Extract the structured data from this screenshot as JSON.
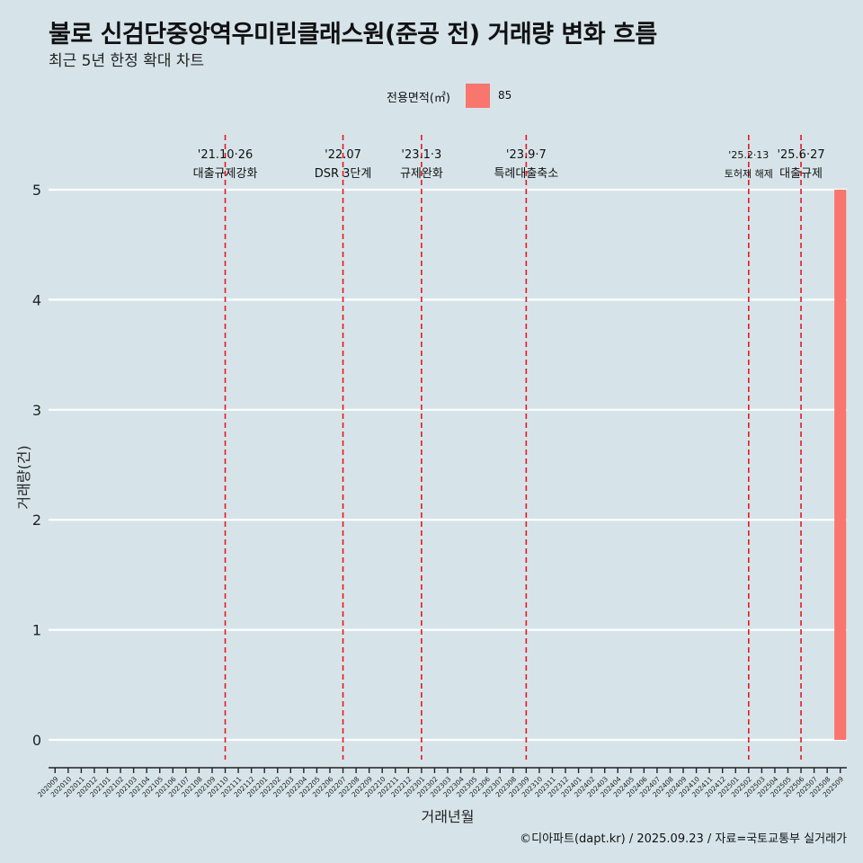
{
  "title": "불로 신검단중앙역우미린클래스원(준공 전) 거래량 변화 흐름",
  "subtitle": "최근 5년 한정 확대 차트",
  "legend": {
    "title": "전용면적(㎡)",
    "label": "85",
    "color": "#f8766d"
  },
  "caption": "©디아파트(dapt.kr) / 2025.09.23 / 자료=국토교통부 실거래가",
  "chart_data": {
    "type": "bar",
    "xlabel": "거래년월",
    "ylabel": "거래량(건)",
    "ylim": [
      0,
      5
    ],
    "yticks": [
      0,
      1,
      2,
      3,
      4,
      5
    ],
    "categories": [
      "202009",
      "202010",
      "202011",
      "202012",
      "202101",
      "202102",
      "202103",
      "202104",
      "202105",
      "202106",
      "202107",
      "202108",
      "202109",
      "202110",
      "202111",
      "202112",
      "202201",
      "202202",
      "202203",
      "202204",
      "202205",
      "202206",
      "202207",
      "202208",
      "202209",
      "202210",
      "202211",
      "202212",
      "202301",
      "202302",
      "202303",
      "202304",
      "202305",
      "202306",
      "202307",
      "202308",
      "202309",
      "202310",
      "202311",
      "202312",
      "202401",
      "202402",
      "202403",
      "202404",
      "202405",
      "202406",
      "202407",
      "202408",
      "202409",
      "202410",
      "202411",
      "202412",
      "202501",
      "202502",
      "202503",
      "202504",
      "202505",
      "202506",
      "202507",
      "202508",
      "202509"
    ],
    "series": [
      {
        "name": "85",
        "color": "#f8766d",
        "values": [
          0,
          0,
          0,
          0,
          0,
          0,
          0,
          0,
          0,
          0,
          0,
          0,
          0,
          0,
          0,
          0,
          0,
          0,
          0,
          0,
          0,
          0,
          0,
          0,
          0,
          0,
          0,
          0,
          0,
          0,
          0,
          0,
          0,
          0,
          0,
          0,
          0,
          0,
          0,
          0,
          0,
          0,
          0,
          0,
          0,
          0,
          0,
          0,
          0,
          0,
          0,
          0,
          0,
          0,
          0,
          0,
          0,
          0,
          0,
          0,
          5
        ]
      }
    ],
    "annotations": [
      {
        "month": "202110",
        "date": "'21.10·26",
        "label": "대출규제강화"
      },
      {
        "month": "202207",
        "date": "'22.07",
        "label": "DSR 3단계"
      },
      {
        "month": "202301",
        "date": "'23.1·3",
        "label": "규제완화"
      },
      {
        "month": "202309",
        "date": "'23.9·7",
        "label": "특례대출축소"
      },
      {
        "month": "202502",
        "date": "'25.2·13",
        "label": "토허제 해제"
      },
      {
        "month": "202506",
        "date": "'25.6·27",
        "label": "대출규제"
      }
    ]
  }
}
